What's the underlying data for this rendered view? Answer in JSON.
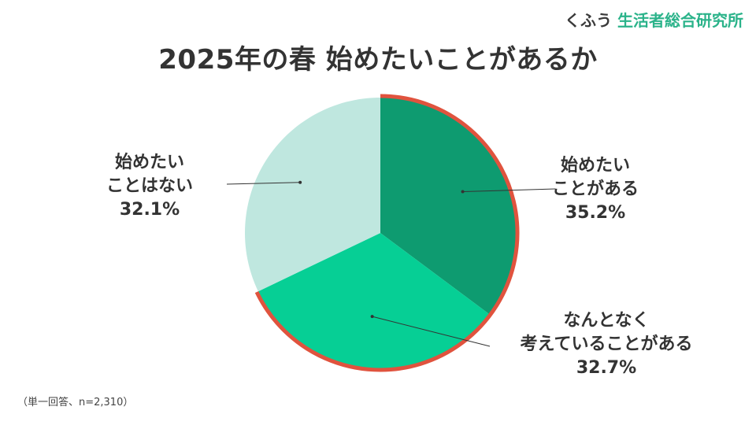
{
  "brand": {
    "kana": "くふう",
    "kanji": "生活者総合研究所"
  },
  "chart_data": {
    "type": "pie",
    "title": "2025年の春 始めたいことがあるか",
    "slices": [
      {
        "label_lines": [
          "始めたい",
          "ことがある"
        ],
        "value": 35.2,
        "value_label": "35.2%",
        "color": "#0e9b70"
      },
      {
        "label_lines": [
          "なんとなく",
          "考えていることがある"
        ],
        "value": 32.7,
        "value_label": "32.7%",
        "color": "#06cf95"
      },
      {
        "label_lines": [
          "始めたい",
          "ことはない"
        ],
        "value": 32.1,
        "value_label": "32.1%",
        "color": "#bfe7df"
      }
    ],
    "highlight_color": "#e0533e",
    "start_angle_deg": 0,
    "direction": "clockwise"
  },
  "note": "（単一回答、n=2,310）"
}
